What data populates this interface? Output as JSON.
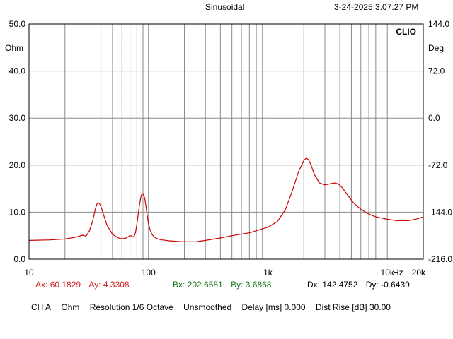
{
  "header": {
    "signal": "Sinusoidal",
    "datetime": "3-24-2025 3.07.27 PM",
    "brand": "CLIO"
  },
  "chart_data": {
    "type": "line",
    "xscale": "log",
    "xlim": [
      10,
      20000
    ],
    "ylim": [
      0,
      50
    ],
    "y2lim": [
      -216,
      144
    ],
    "yunit": "Ohm",
    "y2unit": "Deg",
    "yticks": [
      "0.0",
      "10.0",
      "20.0",
      "30.0",
      "40.0",
      "50.0"
    ],
    "y2ticks": [
      "-216.0",
      "-144.0",
      "-72.0",
      "0.0",
      "72.0",
      "144.0"
    ],
    "xticks": [
      {
        "v": 10,
        "label": "10"
      },
      {
        "v": 100,
        "label": "100"
      },
      {
        "v": 1000,
        "label": "1k"
      },
      {
        "v": 10000,
        "label": "10k"
      },
      {
        "v": 20000,
        "label": "20k"
      }
    ],
    "xunit": "Hz",
    "grid": true,
    "cursors": [
      {
        "name": "A",
        "x": 60.1829,
        "color": "#d02020",
        "style": "dotted"
      },
      {
        "name": "B",
        "x": 202.6581,
        "color": "#1a7a1a",
        "style": "dashed"
      }
    ],
    "series": [
      {
        "color": "#cc0000",
        "x": [
          10,
          15,
          20,
          25,
          28,
          30,
          32,
          34,
          36,
          37,
          38,
          39,
          40,
          42,
          45,
          50,
          55,
          60,
          65,
          70,
          72,
          74,
          76,
          78,
          80,
          84,
          87,
          90,
          93,
          95,
          97,
          100,
          103,
          107,
          112,
          120,
          130,
          150,
          180,
          202.6581,
          250,
          300,
          400,
          500,
          700,
          1000,
          1200,
          1400,
          1600,
          1800,
          2000,
          2100,
          2200,
          2300,
          2450,
          2700,
          3000,
          3300,
          3600,
          3900,
          4200,
          4600,
          5200,
          6000,
          7000,
          8000,
          10000,
          12000,
          15000,
          18000,
          20000
        ],
        "y": [
          4.0,
          4.1,
          4.3,
          4.7,
          5.1,
          4.9,
          6.0,
          8.0,
          10.8,
          11.7,
          12.0,
          11.8,
          11.2,
          9.5,
          7.2,
          5.3,
          4.6,
          4.33,
          4.5,
          5.0,
          4.95,
          4.7,
          4.9,
          5.7,
          7.5,
          11.5,
          13.6,
          14.0,
          13.0,
          11.5,
          9.8,
          7.6,
          6.3,
          5.3,
          4.7,
          4.3,
          4.1,
          3.9,
          3.75,
          3.69,
          3.7,
          4.0,
          4.5,
          5.0,
          5.6,
          6.8,
          8.0,
          10.5,
          14.5,
          18.5,
          21.0,
          21.5,
          21.1,
          20.0,
          18.0,
          16.2,
          15.8,
          16.0,
          16.2,
          16.0,
          15.2,
          13.8,
          12.0,
          10.6,
          9.6,
          9.0,
          8.5,
          8.2,
          8.2,
          8.6,
          9.0
        ]
      }
    ]
  },
  "measurements": {
    "a": {
      "x_label": "Ax:",
      "x_value": "60.1829",
      "y_label": "Ay:",
      "y_value": "4.3308",
      "color": "#d02020"
    },
    "b": {
      "x_label": "Bx:",
      "x_value": "202.6581",
      "y_label": "By:",
      "y_value": "3.6868",
      "color": "#1a7a1a"
    },
    "d": {
      "x_label": "Dx:",
      "x_value": "142.4752",
      "y_label": "Dy:",
      "y_value": "-0.6439",
      "color": "#000000"
    }
  },
  "status": {
    "channel": "CH A",
    "unit": "Ohm",
    "resolution": "Resolution 1/6 Octave",
    "smoothing": "Unsmoothed",
    "delay": "Delay [ms] 0.000",
    "dist_rise": "Dist Rise [dB] 30.00"
  }
}
